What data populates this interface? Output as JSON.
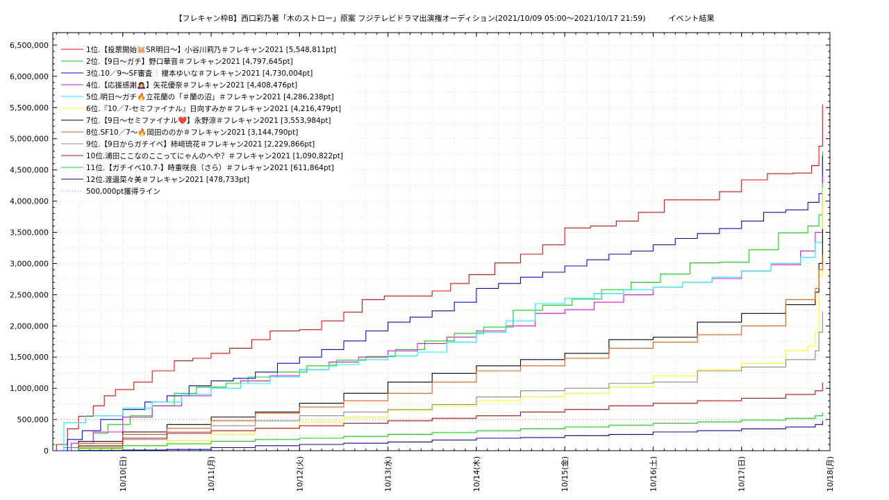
{
  "chart_data": {
    "type": "line",
    "title": "【フレキャン枠B】西口彩乃著「木のストロー」原案 フジテレビドラマ出演権オーディション(2021/10/09 05:00〜2021/10/17 21:59)　　　イベント結果",
    "xlabel": "",
    "ylabel": "",
    "x_domain": [
      "2021-10-09 05:00",
      "2021-10-18 00:00"
    ],
    "ylim": [
      0,
      6700000
    ],
    "yticks": [
      "0",
      "500,000",
      "1,000,000",
      "1,500,000",
      "2,000,000",
      "2,500,000",
      "3,000,000",
      "3,500,000",
      "4,000,000",
      "4,500,000",
      "5,000,000",
      "5,500,000",
      "6,000,000",
      "6,500,000"
    ],
    "ytick_values": [
      0,
      500000,
      1000000,
      1500000,
      2000000,
      2500000,
      3000000,
      3500000,
      4000000,
      4500000,
      5000000,
      5500000,
      6000000,
      6500000
    ],
    "xticks": [
      "10/10(日)",
      "10/11(月)",
      "10/12(火)",
      "10/13(水)",
      "10/14(木)",
      "10/15(金)",
      "10/16(土)",
      "10/17(日)",
      "10/18(月)"
    ],
    "xtick_values": [
      "2021-10-10",
      "2021-10-11",
      "2021-10-12",
      "2021-10-13",
      "2021-10-14",
      "2021-10-15",
      "2021-10-16",
      "2021-10-17",
      "2021-10-18"
    ],
    "grid": true,
    "legend_position": "top-left",
    "series": [
      {
        "name": "1位.【投票開始🐹SR明日〜】小谷川莉乃＃フレキャン2021 [5,548,811pt]",
        "color": "#ff0000",
        "x": [
          "2021-10-09 05:00",
          "2021-10-09 06:00",
          "2021-10-09 09:00",
          "2021-10-09 12:00",
          "2021-10-09 16:00",
          "2021-10-09 19:00",
          "2021-10-09 22:00",
          "2021-10-10 03:00",
          "2021-10-10 08:00",
          "2021-10-10 14:00",
          "2021-10-10 19:00",
          "2021-10-11 00:00",
          "2021-10-11 05:00",
          "2021-10-11 11:00",
          "2021-10-11 16:00",
          "2021-10-12 00:00",
          "2021-10-12 06:00",
          "2021-10-12 12:00",
          "2021-10-12 17:00",
          "2021-10-12 23:00",
          "2021-10-13 07:00",
          "2021-10-13 12:00",
          "2021-10-13 17:00",
          "2021-10-13 22:00",
          "2021-10-14 05:00",
          "2021-10-14 12:00",
          "2021-10-14 18:00",
          "2021-10-15 00:00",
          "2021-10-15 07:00",
          "2021-10-15 14:00",
          "2021-10-15 20:00",
          "2021-10-16 03:00",
          "2021-10-16 10:00",
          "2021-10-16 18:00",
          "2021-10-17 00:00",
          "2021-10-17 07:00",
          "2021-10-17 14:00",
          "2021-10-17 19:00",
          "2021-10-17 21:00",
          "2021-10-17 21:59"
        ],
        "values": [
          0,
          100000,
          350000,
          550000,
          720000,
          880000,
          980000,
          1100000,
          1280000,
          1440000,
          1480000,
          1560000,
          1640000,
          1780000,
          1920000,
          1940000,
          2080000,
          2220000,
          2420000,
          2480000,
          2480000,
          2560000,
          2680000,
          2820000,
          3010000,
          3150000,
          3300000,
          3570000,
          3600000,
          3680000,
          3820000,
          4020000,
          4020000,
          4150000,
          4340000,
          4440000,
          4450000,
          4570000,
          4880000,
          5548811
        ]
      },
      {
        "name": "2位.【9日〜ガチ】野口華音＃フレキャン2021 [4,797,645pt]",
        "color": "#00e000",
        "x": [
          "2021-10-09 05:00",
          "2021-10-09 08:00",
          "2021-10-09 12:00",
          "2021-10-09 16:00",
          "2021-10-09 20:00",
          "2021-10-10 02:00",
          "2021-10-10 08:00",
          "2021-10-10 14:00",
          "2021-10-10 20:00",
          "2021-10-11 04:00",
          "2021-10-11 10:00",
          "2021-10-11 18:00",
          "2021-10-12 02:00",
          "2021-10-12 10:00",
          "2021-10-12 18:00",
          "2021-10-13 02:00",
          "2021-10-13 10:00",
          "2021-10-13 18:00",
          "2021-10-14 02:00",
          "2021-10-14 10:00",
          "2021-10-14 18:00",
          "2021-10-15 02:00",
          "2021-10-15 10:00",
          "2021-10-15 18:00",
          "2021-10-16 02:00",
          "2021-10-16 10:00",
          "2021-10-16 18:00",
          "2021-10-17 02:00",
          "2021-10-17 10:00",
          "2021-10-17 18:00",
          "2021-10-17 21:00",
          "2021-10-17 21:59"
        ],
        "values": [
          0,
          50000,
          150000,
          280000,
          420000,
          560000,
          720000,
          920000,
          1020000,
          1080000,
          1180000,
          1260000,
          1360000,
          1450000,
          1510000,
          1620000,
          1760000,
          1880000,
          1980000,
          2250000,
          2330000,
          2430000,
          2580000,
          2700000,
          2830000,
          3010000,
          3020000,
          3220000,
          3490000,
          3600000,
          3780000,
          4797645
        ]
      },
      {
        "name": "3位.10／9〜SF審査❕榎本ゆいな＃フレキャン2021 [4,730,004pt]",
        "color": "#0000ff",
        "x": [
          "2021-10-09 05:00",
          "2021-10-09 09:00",
          "2021-10-09 13:00",
          "2021-10-09 18:00",
          "2021-10-10 00:00",
          "2021-10-10 06:00",
          "2021-10-10 12:00",
          "2021-10-10 18:00",
          "2021-10-11 00:00",
          "2021-10-11 06:00",
          "2021-10-11 12:00",
          "2021-10-11 18:00",
          "2021-10-12 00:00",
          "2021-10-12 06:00",
          "2021-10-12 12:00",
          "2021-10-12 18:00",
          "2021-10-13 00:00",
          "2021-10-13 06:00",
          "2021-10-13 12:00",
          "2021-10-13 18:00",
          "2021-10-14 00:00",
          "2021-10-14 06:00",
          "2021-10-14 12:00",
          "2021-10-14 18:00",
          "2021-10-15 00:00",
          "2021-10-15 06:00",
          "2021-10-15 12:00",
          "2021-10-15 18:00",
          "2021-10-16 00:00",
          "2021-10-16 06:00",
          "2021-10-16 12:00",
          "2021-10-16 18:00",
          "2021-10-17 00:00",
          "2021-10-17 06:00",
          "2021-10-17 12:00",
          "2021-10-17 18:00",
          "2021-10-17 21:00",
          "2021-10-17 21:59"
        ],
        "values": [
          0,
          180000,
          320000,
          500000,
          660000,
          780000,
          880000,
          1040000,
          1120000,
          1160000,
          1260000,
          1400000,
          1500000,
          1620000,
          1760000,
          1920000,
          2060000,
          2140000,
          2240000,
          2380000,
          2600000,
          2680000,
          2780000,
          2860000,
          2960000,
          3060000,
          3150000,
          3200000,
          3300000,
          3400000,
          3480000,
          3560000,
          3680000,
          3820000,
          3860000,
          3980000,
          4120000,
          4730004
        ]
      },
      {
        "name": "4位.【応援感謝🙇‍♀️】矢花優奈＃フレキャン2021 [4,408,476pt]",
        "color": "#ff00ff",
        "x": [
          "2021-10-09 05:00",
          "2021-10-09 10:00",
          "2021-10-09 16:00",
          "2021-10-10 00:00",
          "2021-10-10 08:00",
          "2021-10-10 16:00",
          "2021-10-11 00:00",
          "2021-10-11 08:00",
          "2021-10-11 16:00",
          "2021-10-12 00:00",
          "2021-10-12 08:00",
          "2021-10-12 16:00",
          "2021-10-13 00:00",
          "2021-10-13 08:00",
          "2021-10-13 16:00",
          "2021-10-14 00:00",
          "2021-10-14 08:00",
          "2021-10-14 16:00",
          "2021-10-15 00:00",
          "2021-10-15 08:00",
          "2021-10-15 16:00",
          "2021-10-16 00:00",
          "2021-10-16 08:00",
          "2021-10-16 16:00",
          "2021-10-17 00:00",
          "2021-10-17 08:00",
          "2021-10-17 16:00",
          "2021-10-17 20:00",
          "2021-10-17 21:59"
        ],
        "values": [
          0,
          120000,
          300000,
          540000,
          720000,
          880000,
          1000000,
          1120000,
          1200000,
          1300000,
          1420000,
          1500000,
          1600000,
          1720000,
          1820000,
          1920000,
          2000000,
          2200000,
          2260000,
          2380000,
          2500000,
          2620000,
          2700000,
          2760000,
          2880000,
          2980000,
          3200000,
          3500000,
          4408476
        ]
      },
      {
        "name": "5位.明日〜ガチ🔥立花蘭の「＃蘭の沼」＃フレキャン2021 [4,286,238pt]",
        "color": "#00ffff",
        "x": [
          "2021-10-09 05:00",
          "2021-10-09 08:00",
          "2021-10-09 14:00",
          "2021-10-10 00:00",
          "2021-10-10 08:00",
          "2021-10-10 16:00",
          "2021-10-11 00:00",
          "2021-10-11 08:00",
          "2021-10-11 16:00",
          "2021-10-12 00:00",
          "2021-10-12 08:00",
          "2021-10-12 16:00",
          "2021-10-13 00:00",
          "2021-10-13 08:00",
          "2021-10-13 16:00",
          "2021-10-14 00:00",
          "2021-10-14 08:00",
          "2021-10-14 16:00",
          "2021-10-15 00:00",
          "2021-10-15 08:00",
          "2021-10-15 16:00",
          "2021-10-16 00:00",
          "2021-10-16 08:00",
          "2021-10-16 16:00",
          "2021-10-17 00:00",
          "2021-10-17 08:00",
          "2021-10-17 16:00",
          "2021-10-17 20:00",
          "2021-10-17 21:59"
        ],
        "values": [
          0,
          450000,
          560000,
          680000,
          780000,
          900000,
          1000000,
          1080000,
          1180000,
          1300000,
          1380000,
          1460000,
          1520000,
          1580000,
          1740000,
          1900000,
          2080000,
          2360000,
          2440000,
          2520000,
          2580000,
          2620000,
          2700000,
          2780000,
          2880000,
          3000000,
          3100000,
          3340000,
          4286238
        ]
      },
      {
        "name": "6位.『10／7-セミファイナル』日向すみか＃フレキャン2021 [4,216,479pt]",
        "color": "#ffff00",
        "x": [
          "2021-10-09 05:00",
          "2021-10-09 12:00",
          "2021-10-10 00:00",
          "2021-10-10 12:00",
          "2021-10-11 00:00",
          "2021-10-11 12:00",
          "2021-10-12 00:00",
          "2021-10-12 12:00",
          "2021-10-13 00:00",
          "2021-10-13 12:00",
          "2021-10-14 00:00",
          "2021-10-14 12:00",
          "2021-10-15 00:00",
          "2021-10-15 12:00",
          "2021-10-16 00:00",
          "2021-10-16 12:00",
          "2021-10-17 00:00",
          "2021-10-17 12:00",
          "2021-10-17 18:00",
          "2021-10-17 20:00",
          "2021-10-17 21:00",
          "2021-10-17 21:59"
        ],
        "values": [
          0,
          30000,
          80000,
          160000,
          260000,
          360000,
          460000,
          540000,
          640000,
          720000,
          800000,
          860000,
          920000,
          1020000,
          1200000,
          1300000,
          1400000,
          1600000,
          1680000,
          1900000,
          2800000,
          4216479
        ]
      },
      {
        "name": "7位.【9日〜セミファイナル❤️】永野涼＃フレキャン2021 [3,553,984pt]",
        "color": "#000000",
        "x": [
          "2021-10-09 05:00",
          "2021-10-09 12:00",
          "2021-10-10 00:00",
          "2021-10-10 12:00",
          "2021-10-11 00:00",
          "2021-10-11 12:00",
          "2021-10-12 00:00",
          "2021-10-12 12:00",
          "2021-10-13 00:00",
          "2021-10-13 12:00",
          "2021-10-14 00:00",
          "2021-10-14 12:00",
          "2021-10-15 00:00",
          "2021-10-15 12:00",
          "2021-10-16 00:00",
          "2021-10-16 12:00",
          "2021-10-17 00:00",
          "2021-10-17 12:00",
          "2021-10-17 20:00",
          "2021-10-17 21:00",
          "2021-10-17 21:59"
        ],
        "values": [
          0,
          150000,
          300000,
          420000,
          540000,
          620000,
          760000,
          920000,
          1100000,
          1240000,
          1360000,
          1460000,
          1560000,
          1780000,
          1820000,
          2060000,
          2200000,
          2340000,
          2540000,
          3000000,
          3553984
        ]
      },
      {
        "name": "8位.SF10／7〜🔥岡田ののか＃フレキャン2021 [3,144,790pt]",
        "color": "#ff5500",
        "x": [
          "2021-10-09 05:00",
          "2021-10-09 12:00",
          "2021-10-10 00:00",
          "2021-10-10 12:00",
          "2021-10-11 00:00",
          "2021-10-11 12:00",
          "2021-10-12 00:00",
          "2021-10-12 12:00",
          "2021-10-13 00:00",
          "2021-10-13 12:00",
          "2021-10-14 00:00",
          "2021-10-14 12:00",
          "2021-10-15 00:00",
          "2021-10-15 12:00",
          "2021-10-16 00:00",
          "2021-10-16 12:00",
          "2021-10-17 00:00",
          "2021-10-17 12:00",
          "2021-10-17 20:00",
          "2021-10-17 21:00",
          "2021-10-17 21:59"
        ],
        "values": [
          0,
          120000,
          260000,
          360000,
          480000,
          600000,
          700000,
          800000,
          920000,
          1100000,
          1280000,
          1360000,
          1480000,
          1640000,
          1740000,
          1860000,
          2000000,
          2420000,
          2600000,
          2900000,
          3144790
        ]
      },
      {
        "name": "9位.【9日からガチイベ】柿﨑琉花＃フレキャン2021 [2,229,866pt]",
        "color": "#888888",
        "x": [
          "2021-10-09 05:00",
          "2021-10-09 12:00",
          "2021-10-10 00:00",
          "2021-10-10 12:00",
          "2021-10-11 00:00",
          "2021-10-11 12:00",
          "2021-10-12 00:00",
          "2021-10-12 12:00",
          "2021-10-13 00:00",
          "2021-10-13 12:00",
          "2021-10-14 00:00",
          "2021-10-14 12:00",
          "2021-10-15 00:00",
          "2021-10-15 12:00",
          "2021-10-16 00:00",
          "2021-10-16 12:00",
          "2021-10-17 00:00",
          "2021-10-17 12:00",
          "2021-10-17 20:00",
          "2021-10-17 21:00",
          "2021-10-17 21:59"
        ],
        "values": [
          0,
          60000,
          180000,
          300000,
          400000,
          480000,
          560000,
          620000,
          660000,
          740000,
          860000,
          960000,
          1000000,
          1080000,
          1100000,
          1280000,
          1340000,
          1460000,
          1600000,
          1900000,
          2229866
        ]
      },
      {
        "name": "10位.浦田ここなのここってにゃんのへや？＃フレキャン2021 [1,090,822pt]",
        "color": "#e00000",
        "x": [
          "2021-10-09 05:00",
          "2021-10-09 12:00",
          "2021-10-10 00:00",
          "2021-10-10 12:00",
          "2021-10-11 00:00",
          "2021-10-11 12:00",
          "2021-10-12 00:00",
          "2021-10-12 12:00",
          "2021-10-13 00:00",
          "2021-10-13 12:00",
          "2021-10-14 00:00",
          "2021-10-14 12:00",
          "2021-10-15 00:00",
          "2021-10-15 12:00",
          "2021-10-16 00:00",
          "2021-10-16 12:00",
          "2021-10-17 00:00",
          "2021-10-17 12:00",
          "2021-10-17 20:00",
          "2021-10-17 21:59"
        ],
        "values": [
          0,
          80000,
          200000,
          280000,
          320000,
          360000,
          400000,
          440000,
          480000,
          520000,
          560000,
          620000,
          660000,
          720000,
          760000,
          800000,
          840000,
          900000,
          960000,
          1090822
        ]
      },
      {
        "name": "11位.【ガチイベ10.7-】時重咲良（さら）＃フレキャン2021 [611,864pt]",
        "color": "#00dd00",
        "x": [
          "2021-10-09 05:00",
          "2021-10-09 12:00",
          "2021-10-10 00:00",
          "2021-10-10 12:00",
          "2021-10-11 00:00",
          "2021-10-11 12:00",
          "2021-10-12 00:00",
          "2021-10-12 12:00",
          "2021-10-13 00:00",
          "2021-10-13 12:00",
          "2021-10-14 00:00",
          "2021-10-14 12:00",
          "2021-10-15 00:00",
          "2021-10-15 12:00",
          "2021-10-16 00:00",
          "2021-10-16 12:00",
          "2021-10-17 00:00",
          "2021-10-17 12:00",
          "2021-10-17 20:00",
          "2021-10-17 21:59"
        ],
        "values": [
          0,
          40000,
          80000,
          110000,
          150000,
          180000,
          200000,
          230000,
          260000,
          290000,
          320000,
          350000,
          380000,
          410000,
          440000,
          460000,
          490000,
          520000,
          560000,
          611864
        ]
      },
      {
        "name": "12位.渡邊菜々美＃フレキャン2021 [478,733pt]",
        "color": "#0000dd",
        "x": [
          "2021-10-09 05:00",
          "2021-10-09 12:00",
          "2021-10-10 00:00",
          "2021-10-10 12:00",
          "2021-10-11 00:00",
          "2021-10-11 12:00",
          "2021-10-12 00:00",
          "2021-10-12 12:00",
          "2021-10-13 00:00",
          "2021-10-13 12:00",
          "2021-10-14 00:00",
          "2021-10-14 12:00",
          "2021-10-15 00:00",
          "2021-10-15 12:00",
          "2021-10-16 00:00",
          "2021-10-16 12:00",
          "2021-10-17 00:00",
          "2021-10-17 12:00",
          "2021-10-17 20:00",
          "2021-10-17 21:59"
        ],
        "values": [
          0,
          5000,
          10000,
          20000,
          50000,
          80000,
          100000,
          120000,
          140000,
          170000,
          200000,
          210000,
          240000,
          260000,
          300000,
          320000,
          350000,
          380000,
          420000,
          478733
        ]
      }
    ],
    "reference_line": {
      "name": "500,000pt獲得ライン",
      "value": 500000,
      "color": "#888888"
    }
  }
}
